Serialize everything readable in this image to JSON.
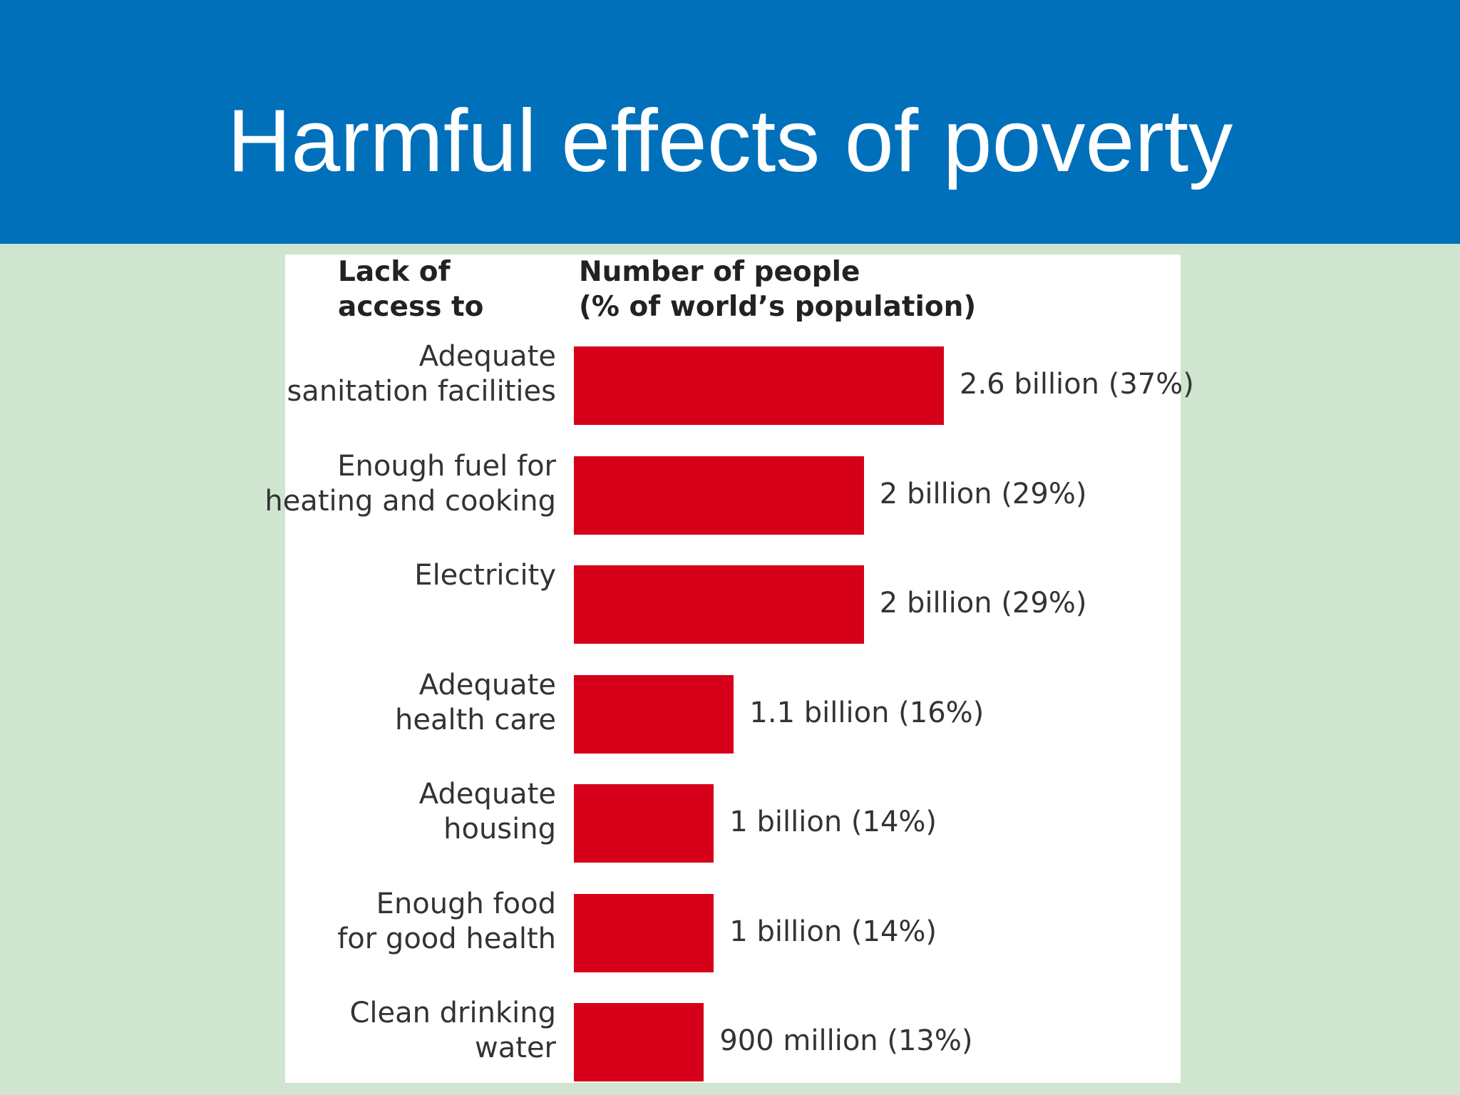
{
  "slide": {
    "title": "Harmful effects of poverty"
  },
  "chart_data": {
    "type": "bar",
    "orientation": "horizontal",
    "title": "Harmful effects of poverty",
    "category_header": [
      "Lack of",
      "access to"
    ],
    "value_header": [
      "Number of people",
      "(% of world’s population)"
    ],
    "categories": [
      [
        "Adequate",
        "sanitation facilities"
      ],
      [
        "Enough fuel for",
        "heating and cooking"
      ],
      [
        "Electricity"
      ],
      [
        "Adequate",
        "health care"
      ],
      [
        "Adequate",
        "housing"
      ],
      [
        "Enough food",
        "for good health"
      ],
      [
        "Clean drinking",
        "water"
      ]
    ],
    "values": [
      37,
      29,
      29,
      16,
      14,
      14,
      13
    ],
    "value_unit": "% of world population",
    "value_labels": [
      "2.6 billion (37%)",
      "2 billion (29%)",
      "2 billion (29%)",
      "1.1 billion (16%)",
      "1 billion (14%)",
      "1 billion (14%)",
      "900 million (13%)"
    ],
    "xlim": [
      0,
      37
    ],
    "colors": {
      "bar": "#d7001a"
    }
  }
}
